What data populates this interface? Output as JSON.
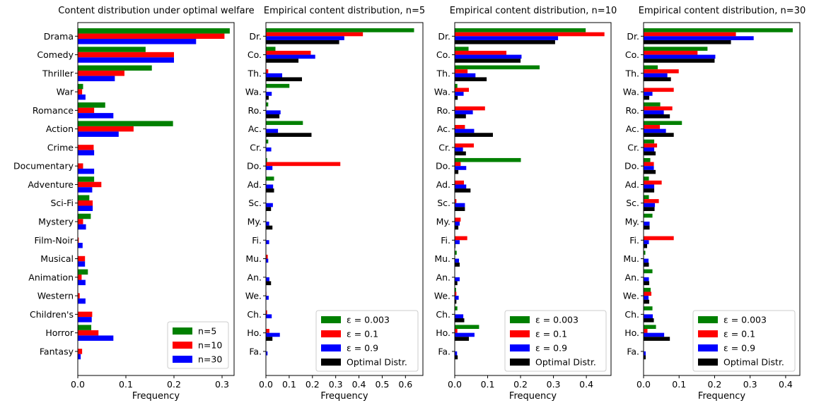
{
  "figure": {
    "colors": {
      "n=5": "#008000",
      "n=10": "#ff0000",
      "n=30": "#0000ff",
      "eps_0.003": "#008000",
      "eps_0.1": "#ff0000",
      "eps_0.9": "#0000ff",
      "optimal": "#000000"
    }
  },
  "chart_data": [
    {
      "type": "bar",
      "orientation": "horizontal",
      "title": "Content distribution under optimal welfare",
      "xlabel": "Frequency",
      "ylabel": "",
      "xlim": [
        0,
        0.325
      ],
      "xticks": [
        "0.0",
        "0.1",
        "0.2",
        "0.3"
      ],
      "categories": [
        "Drama",
        "Comedy",
        "Thriller",
        "War",
        "Romance",
        "Action",
        "Crime",
        "Documentary",
        "Adventure",
        "Sci-Fi",
        "Mystery",
        "Film-Noir",
        "Musical",
        "Animation",
        "Western",
        "Children's",
        "Horror",
        "Fantasy"
      ],
      "series": [
        {
          "name": "n=5",
          "color": "#008000",
          "values": [
            0.316,
            0.141,
            0.154,
            0.011,
            0.057,
            0.198,
            0.0,
            0.0,
            0.034,
            0.024,
            0.027,
            0.0,
            0.0,
            0.021,
            0.0,
            0.0,
            0.028,
            0.0
          ]
        },
        {
          "name": "n=10",
          "color": "#ff0000",
          "values": [
            0.305,
            0.2,
            0.097,
            0.009,
            0.034,
            0.116,
            0.033,
            0.011,
            0.049,
            0.031,
            0.011,
            0.002,
            0.015,
            0.008,
            0.004,
            0.03,
            0.043,
            0.009
          ]
        },
        {
          "name": "n=30",
          "color": "#0000ff",
          "values": [
            0.246,
            0.2,
            0.077,
            0.016,
            0.074,
            0.085,
            0.034,
            0.034,
            0.03,
            0.031,
            0.017,
            0.01,
            0.015,
            0.016,
            0.016,
            0.029,
            0.074,
            0.006
          ]
        }
      ],
      "legend": {
        "position": "lower-right",
        "entries": [
          "n=5",
          "n=10",
          "n=30"
        ]
      }
    },
    {
      "type": "bar",
      "orientation": "horizontal",
      "title": "Empirical content distribution, n=5",
      "xlabel": "Frequency",
      "ylabel": "",
      "xlim": [
        0,
        0.675
      ],
      "xticks": [
        "0.0",
        "0.1",
        "0.2",
        "0.3",
        "0.4",
        "0.5",
        "0.6"
      ],
      "categories": [
        "Dr.",
        "Co.",
        "Th.",
        "Wa.",
        "Ro.",
        "Ac.",
        "Cr.",
        "Do.",
        "Ad.",
        "Sc.",
        "My.",
        "Fi.",
        "Mu.",
        "An.",
        "We.",
        "Ch.",
        "Ho.",
        "Fa."
      ],
      "series": [
        {
          "name": "ε = 0.003",
          "color": "#008000",
          "values": [
            0.637,
            0.041,
            0.0,
            0.101,
            0.01,
            0.159,
            0.01,
            0.005,
            0.035,
            0.0,
            0.0,
            0.0,
            0.0,
            0.0,
            0.0,
            0.0,
            0.0,
            0.0
          ]
        },
        {
          "name": "ε = 0.1",
          "color": "#ff0000",
          "values": [
            0.417,
            0.193,
            0.01,
            0.0,
            0.0,
            0.0,
            0.0,
            0.32,
            0.0,
            0.0,
            0.0,
            0.0,
            0.008,
            0.0,
            0.002,
            0.005,
            0.015,
            0.0
          ]
        },
        {
          "name": "ε = 0.9",
          "color": "#0000ff",
          "values": [
            0.337,
            0.212,
            0.07,
            0.025,
            0.063,
            0.052,
            0.023,
            0.028,
            0.031,
            0.03,
            0.014,
            0.014,
            0.01,
            0.015,
            0.012,
            0.025,
            0.06,
            0.007
          ]
        },
        {
          "name": "Optimal Distr.",
          "color": "#000000",
          "values": [
            0.315,
            0.14,
            0.155,
            0.012,
            0.058,
            0.196,
            0.0,
            0.0,
            0.035,
            0.022,
            0.028,
            0.0,
            0.0,
            0.022,
            0.0,
            0.0,
            0.028,
            0.0
          ]
        }
      ],
      "legend": {
        "position": "lower-right",
        "entries": [
          "ε = 0.003",
          "ε = 0.1",
          "ε = 0.9",
          "Optimal Distr."
        ]
      }
    },
    {
      "type": "bar",
      "orientation": "horizontal",
      "title": "Empirical content distribution, n=10",
      "xlabel": "Frequency",
      "ylabel": "",
      "xlim": [
        0,
        0.475
      ],
      "xticks": [
        "0.0",
        "0.1",
        "0.2",
        "0.3",
        "0.4"
      ],
      "categories": [
        "Dr.",
        "Co.",
        "Th.",
        "Wa.",
        "Ro.",
        "Ac.",
        "Cr.",
        "Do.",
        "Ad.",
        "Sc.",
        "My.",
        "Fi.",
        "Mu.",
        "An.",
        "We.",
        "Ch.",
        "Ho.",
        "Fa."
      ],
      "series": [
        {
          "name": "ε = 0.003",
          "color": "#008000",
          "values": [
            0.398,
            0.042,
            0.258,
            0.008,
            0.0,
            0.0,
            0.0,
            0.201,
            0.0,
            0.0,
            0.0,
            0.0,
            0.006,
            0.0,
            0.004,
            0.008,
            0.074,
            0.0
          ]
        },
        {
          "name": "ε = 0.1",
          "color": "#ff0000",
          "values": [
            0.455,
            0.157,
            0.039,
            0.043,
            0.092,
            0.031,
            0.058,
            0.018,
            0.028,
            0.005,
            0.018,
            0.038,
            0.0,
            0.0,
            0.005,
            0.0,
            0.008,
            0.0
          ]
        },
        {
          "name": "ε = 0.9",
          "color": "#0000ff",
          "values": [
            0.314,
            0.203,
            0.063,
            0.027,
            0.055,
            0.059,
            0.025,
            0.035,
            0.035,
            0.031,
            0.015,
            0.015,
            0.013,
            0.015,
            0.012,
            0.026,
            0.06,
            0.007
          ]
        },
        {
          "name": "Optimal Distr.",
          "color": "#000000",
          "values": [
            0.305,
            0.2,
            0.097,
            0.009,
            0.034,
            0.116,
            0.034,
            0.011,
            0.048,
            0.031,
            0.011,
            0.002,
            0.015,
            0.008,
            0.005,
            0.029,
            0.043,
            0.009
          ]
        }
      ],
      "legend": {
        "position": "lower-right",
        "entries": [
          "ε = 0.003",
          "ε = 0.1",
          "ε = 0.9",
          "Optimal Distr."
        ]
      }
    },
    {
      "type": "bar",
      "orientation": "horizontal",
      "title": "Empirical content distribution, n=30",
      "xlabel": "Frequency",
      "ylabel": "",
      "xlim": [
        0,
        0.44
      ],
      "xticks": [
        "0.0",
        "0.1",
        "0.2",
        "0.3",
        "0.4"
      ],
      "categories": [
        "Dr.",
        "Co.",
        "Th.",
        "Wa.",
        "Ro.",
        "Ac.",
        "Cr.",
        "Do.",
        "Ad.",
        "Sc.",
        "My.",
        "Fi.",
        "Mu.",
        "An.",
        "We.",
        "Ch.",
        "Ho.",
        "Fa."
      ],
      "series": [
        {
          "name": "ε = 0.003",
          "color": "#008000",
          "values": [
            0.42,
            0.18,
            0.04,
            0.0,
            0.047,
            0.108,
            0.03,
            0.019,
            0.015,
            0.015,
            0.025,
            0.0,
            0.005,
            0.025,
            0.02,
            0.025,
            0.035,
            0.0
          ]
        },
        {
          "name": "ε = 0.1",
          "color": "#ff0000",
          "values": [
            0.26,
            0.152,
            0.099,
            0.085,
            0.081,
            0.046,
            0.038,
            0.029,
            0.051,
            0.043,
            0.0,
            0.085,
            0.0,
            0.0,
            0.022,
            0.0,
            0.011,
            0.0
          ]
        },
        {
          "name": "ε = 0.9",
          "color": "#0000ff",
          "values": [
            0.31,
            0.202,
            0.067,
            0.025,
            0.057,
            0.063,
            0.03,
            0.029,
            0.03,
            0.032,
            0.017,
            0.015,
            0.014,
            0.015,
            0.014,
            0.026,
            0.058,
            0.006
          ]
        },
        {
          "name": "Optimal Distr.",
          "color": "#000000",
          "values": [
            0.246,
            0.2,
            0.077,
            0.016,
            0.074,
            0.085,
            0.034,
            0.034,
            0.03,
            0.031,
            0.017,
            0.01,
            0.015,
            0.016,
            0.016,
            0.029,
            0.074,
            0.006
          ]
        }
      ],
      "legend": {
        "position": "lower-right",
        "entries": [
          "ε = 0.003",
          "ε = 0.1",
          "ε = 0.9",
          "Optimal Distr."
        ]
      }
    }
  ]
}
